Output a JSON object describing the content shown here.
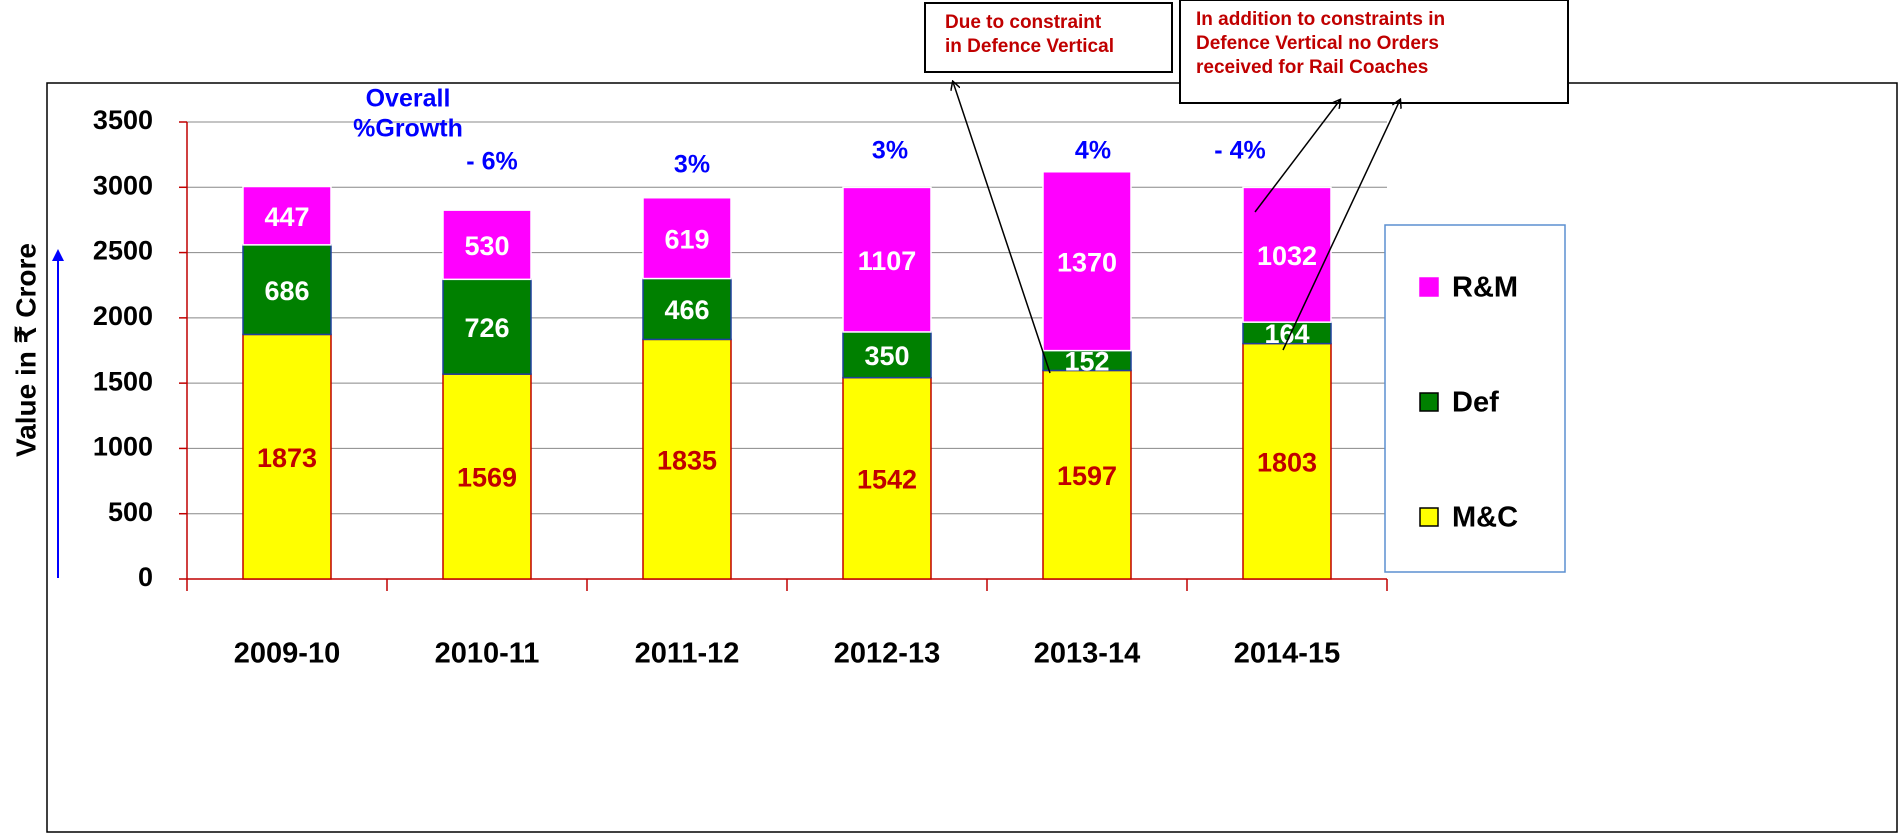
{
  "chart_data": {
    "type": "stacked_bar",
    "y_axis_label": "Value in ₹ Crore",
    "categories": [
      "2009-10",
      "2010-11",
      "2011-12",
      "2012-13",
      "2013-14",
      "2014-15"
    ],
    "series": [
      {
        "name": "M&C",
        "color": "#ffff00",
        "values": [
          1873,
          1569,
          1835,
          1542,
          1597,
          1803
        ]
      },
      {
        "name": "Def",
        "color": "#008000",
        "values": [
          686,
          726,
          466,
          350,
          152,
          164
        ]
      },
      {
        "name": "R&M",
        "color": "#ff00ff",
        "values": [
          447,
          530,
          619,
          1107,
          1370,
          1032
        ]
      }
    ],
    "ylim": [
      0,
      3500
    ],
    "yticks": [
      0,
      500,
      1000,
      1500,
      2000,
      2500,
      3000,
      3500
    ],
    "grid": true,
    "legend": "right",
    "growth_heading": [
      "Overall",
      "%Growth"
    ],
    "growth_labels": [
      "- 6%",
      "3%",
      "3%",
      "4%",
      "- 4%"
    ],
    "callouts": [
      {
        "lines": [
          "Due to constraint",
          "in Defence Vertical"
        ]
      },
      {
        "lines": [
          "In addition to constraints in",
          "Defence Vertical no Orders",
          "received for Rail Coaches"
        ]
      }
    ]
  }
}
